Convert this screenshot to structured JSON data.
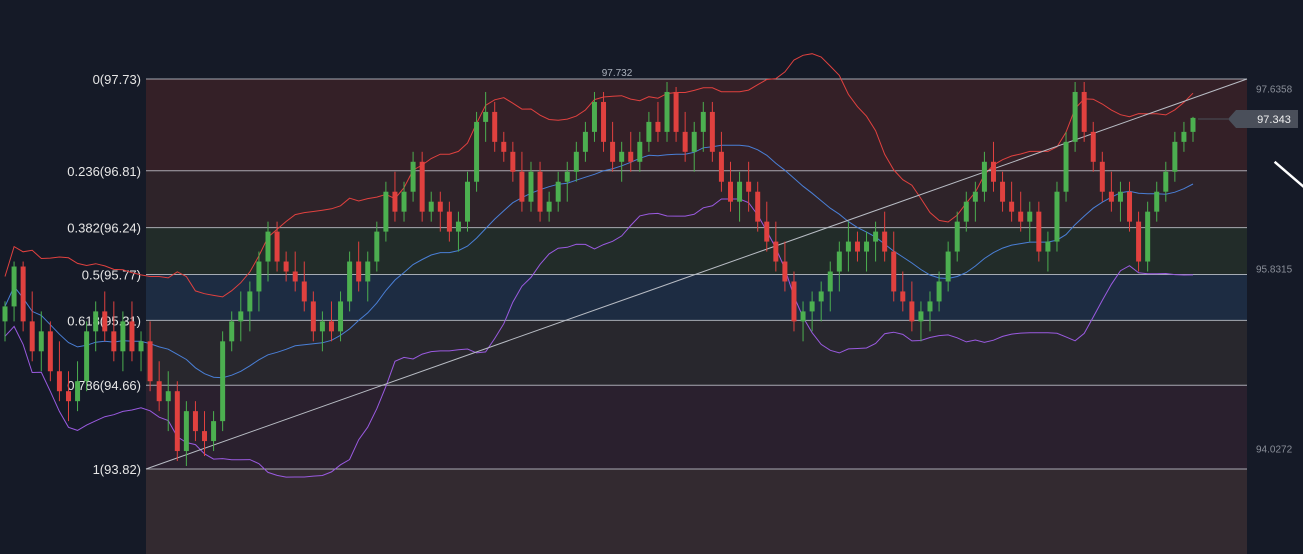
{
  "chart_data": {
    "type": "candlestick",
    "instrument_note": "",
    "y_range": [
      93.82,
      97.73
    ],
    "colors": {
      "background": "#151a27",
      "up_candle": "#4caf50",
      "down_candle": "#e0413f",
      "middle_band": "#4a7fd6",
      "upper_band": "#e0413f",
      "lower_band": "#9a5ae0",
      "trend_line": "#b8bcc4",
      "fib_line": "#c8ccd4",
      "arrow": "#ffffff",
      "price_badge": "#4a4f5a"
    },
    "fib_levels": [
      {
        "ratio": "0",
        "price": 97.73,
        "label": "0(97.73)",
        "band_color": "#3a2228"
      },
      {
        "ratio": "0.236",
        "price": 96.81,
        "label": "0.236(96.81)",
        "band_color": "#33262a"
      },
      {
        "ratio": "0.382",
        "price": 96.24,
        "label": "0.382(96.24)",
        "band_color": "#24302a"
      },
      {
        "ratio": "0.5",
        "price": 95.77,
        "label": "0.5(95.77)",
        "band_color": "#1e3048"
      },
      {
        "ratio": "0.618",
        "price": 95.31,
        "label": "0.618(95.31)",
        "band_color": "#2c2a2f"
      },
      {
        "ratio": "0.786",
        "price": 94.66,
        "label": "0.786(94.66)",
        "band_color": "#2e2230"
      },
      {
        "ratio": "1",
        "price": 93.82,
        "label": "1(93.82)",
        "band_color": "#312a30"
      }
    ],
    "top_label": "97.732",
    "right_axis_labels": [
      "97.6358",
      "95.8315",
      "94.0272"
    ],
    "current_price": "97.343",
    "candles": [
      [
        95.3,
        95.5,
        95.1,
        95.45
      ],
      [
        95.45,
        95.9,
        95.3,
        95.85
      ],
      [
        95.85,
        95.9,
        95.2,
        95.3
      ],
      [
        95.3,
        95.6,
        94.9,
        95.0
      ],
      [
        95.0,
        95.4,
        94.8,
        95.2
      ],
      [
        95.2,
        95.3,
        94.7,
        94.8
      ],
      [
        94.8,
        95.1,
        94.5,
        94.6
      ],
      [
        94.6,
        94.8,
        94.3,
        94.5
      ],
      [
        94.5,
        94.9,
        94.4,
        94.7
      ],
      [
        94.7,
        95.3,
        94.6,
        95.2
      ],
      [
        95.2,
        95.5,
        95.0,
        95.4
      ],
      [
        95.4,
        95.6,
        95.1,
        95.2
      ],
      [
        95.2,
        95.5,
        94.9,
        95.0
      ],
      [
        95.0,
        95.4,
        94.8,
        95.3
      ],
      [
        95.3,
        95.5,
        94.9,
        95.0
      ],
      [
        95.0,
        95.2,
        94.8,
        95.1
      ],
      [
        95.1,
        95.3,
        94.6,
        94.7
      ],
      [
        94.7,
        94.9,
        94.4,
        94.5
      ],
      [
        94.5,
        94.8,
        94.2,
        94.6
      ],
      [
        94.6,
        94.7,
        93.9,
        94.0
      ],
      [
        94.0,
        94.5,
        93.85,
        94.4
      ],
      [
        94.4,
        94.5,
        94.1,
        94.2
      ],
      [
        94.2,
        94.4,
        93.95,
        94.1
      ],
      [
        94.1,
        94.4,
        94.0,
        94.3
      ],
      [
        94.3,
        95.2,
        94.2,
        95.1
      ],
      [
        95.1,
        95.4,
        95.0,
        95.3
      ],
      [
        95.3,
        95.6,
        95.1,
        95.4
      ],
      [
        95.4,
        95.7,
        95.2,
        95.6
      ],
      [
        95.6,
        96.0,
        95.4,
        95.9
      ],
      [
        95.9,
        96.3,
        95.7,
        96.2
      ],
      [
        96.2,
        96.3,
        95.8,
        95.9
      ],
      [
        95.9,
        96.0,
        95.7,
        95.8
      ],
      [
        95.8,
        96.0,
        95.6,
        95.7
      ],
      [
        95.7,
        95.9,
        95.4,
        95.5
      ],
      [
        95.5,
        95.6,
        95.1,
        95.2
      ],
      [
        95.2,
        95.4,
        95.0,
        95.3
      ],
      [
        95.3,
        95.5,
        95.1,
        95.2
      ],
      [
        95.2,
        95.6,
        95.1,
        95.5
      ],
      [
        95.5,
        96.0,
        95.4,
        95.9
      ],
      [
        95.9,
        96.1,
        95.6,
        95.7
      ],
      [
        95.7,
        96.0,
        95.5,
        95.9
      ],
      [
        95.9,
        96.3,
        95.8,
        96.2
      ],
      [
        96.2,
        96.7,
        96.1,
        96.6
      ],
      [
        96.6,
        96.8,
        96.3,
        96.4
      ],
      [
        96.4,
        96.7,
        96.3,
        96.6
      ],
      [
        96.6,
        97.0,
        96.5,
        96.9
      ],
      [
        96.9,
        97.0,
        96.3,
        96.4
      ],
      [
        96.4,
        96.6,
        96.3,
        96.5
      ],
      [
        96.5,
        96.6,
        96.2,
        96.4
      ],
      [
        96.4,
        96.5,
        96.1,
        96.2
      ],
      [
        96.2,
        96.4,
        96.0,
        96.3
      ],
      [
        96.3,
        96.8,
        96.2,
        96.7
      ],
      [
        96.7,
        97.4,
        96.6,
        97.3
      ],
      [
        97.3,
        97.6,
        97.1,
        97.4
      ],
      [
        97.4,
        97.5,
        97.0,
        97.1
      ],
      [
        97.1,
        97.2,
        96.9,
        97.0
      ],
      [
        97.0,
        97.1,
        96.7,
        96.8
      ],
      [
        96.8,
        97.0,
        96.4,
        96.5
      ],
      [
        96.5,
        96.9,
        96.4,
        96.8
      ],
      [
        96.8,
        96.9,
        96.3,
        96.4
      ],
      [
        96.4,
        96.6,
        96.3,
        96.5
      ],
      [
        96.5,
        96.8,
        96.4,
        96.7
      ],
      [
        96.7,
        96.9,
        96.5,
        96.8
      ],
      [
        96.8,
        97.1,
        96.7,
        97.0
      ],
      [
        97.0,
        97.3,
        96.9,
        97.2
      ],
      [
        97.2,
        97.6,
        97.1,
        97.5
      ],
      [
        97.5,
        97.6,
        97.0,
        97.1
      ],
      [
        97.1,
        97.3,
        96.8,
        96.9
      ],
      [
        96.9,
        97.1,
        96.7,
        97.0
      ],
      [
        97.0,
        97.2,
        96.8,
        96.9
      ],
      [
        96.9,
        97.2,
        96.8,
        97.1
      ],
      [
        97.1,
        97.4,
        97.0,
        97.3
      ],
      [
        97.3,
        97.5,
        97.1,
        97.2
      ],
      [
        97.2,
        97.7,
        97.1,
        97.6
      ],
      [
        97.6,
        97.65,
        97.1,
        97.2
      ],
      [
        97.2,
        97.4,
        96.9,
        97.0
      ],
      [
        97.0,
        97.3,
        96.8,
        97.2
      ],
      [
        97.2,
        97.5,
        97.0,
        97.4
      ],
      [
        97.4,
        97.5,
        96.9,
        97.0
      ],
      [
        97.0,
        97.2,
        96.6,
        96.7
      ],
      [
        96.7,
        96.9,
        96.4,
        96.5
      ],
      [
        96.5,
        96.8,
        96.3,
        96.7
      ],
      [
        96.7,
        96.9,
        96.4,
        96.6
      ],
      [
        96.6,
        96.7,
        96.2,
        96.3
      ],
      [
        96.3,
        96.5,
        96.0,
        96.1
      ],
      [
        96.1,
        96.3,
        95.8,
        95.9
      ],
      [
        95.9,
        96.1,
        95.6,
        95.7
      ],
      [
        95.7,
        95.8,
        95.2,
        95.3
      ],
      [
        95.3,
        95.5,
        95.1,
        95.4
      ],
      [
        95.4,
        95.6,
        95.2,
        95.5
      ],
      [
        95.5,
        95.7,
        95.3,
        95.6
      ],
      [
        95.6,
        95.9,
        95.4,
        95.8
      ],
      [
        95.8,
        96.1,
        95.6,
        96.0
      ],
      [
        96.0,
        96.3,
        95.8,
        96.1
      ],
      [
        96.1,
        96.2,
        95.9,
        96.0
      ],
      [
        96.0,
        96.2,
        95.8,
        96.1
      ],
      [
        96.1,
        96.3,
        95.9,
        96.2
      ],
      [
        96.2,
        96.4,
        95.9,
        96.0
      ],
      [
        96.0,
        96.2,
        95.5,
        95.6
      ],
      [
        95.6,
        95.8,
        95.4,
        95.5
      ],
      [
        95.5,
        95.7,
        95.2,
        95.3
      ],
      [
        95.3,
        95.5,
        95.1,
        95.4
      ],
      [
        95.4,
        95.6,
        95.2,
        95.5
      ],
      [
        95.5,
        95.8,
        95.4,
        95.7
      ],
      [
        95.7,
        96.1,
        95.6,
        96.0
      ],
      [
        96.0,
        96.4,
        95.9,
        96.3
      ],
      [
        96.3,
        96.6,
        96.2,
        96.5
      ],
      [
        96.5,
        96.7,
        96.3,
        96.6
      ],
      [
        96.6,
        97.0,
        96.5,
        96.9
      ],
      [
        96.9,
        97.1,
        96.6,
        96.7
      ],
      [
        96.7,
        96.8,
        96.4,
        96.5
      ],
      [
        96.5,
        96.7,
        96.3,
        96.4
      ],
      [
        96.4,
        96.6,
        96.2,
        96.3
      ],
      [
        96.3,
        96.5,
        96.1,
        96.4
      ],
      [
        96.4,
        96.5,
        95.9,
        96.0
      ],
      [
        96.0,
        96.2,
        95.8,
        96.1
      ],
      [
        96.1,
        96.7,
        96.0,
        96.6
      ],
      [
        96.6,
        97.2,
        96.5,
        97.1
      ],
      [
        97.1,
        97.7,
        97.0,
        97.6
      ],
      [
        97.6,
        97.7,
        97.1,
        97.2
      ],
      [
        97.2,
        97.3,
        96.8,
        96.9
      ],
      [
        96.9,
        97.0,
        96.5,
        96.6
      ],
      [
        96.6,
        96.8,
        96.4,
        96.5
      ],
      [
        96.5,
        96.7,
        96.3,
        96.6
      ],
      [
        96.6,
        96.7,
        96.2,
        96.3
      ],
      [
        96.3,
        96.4,
        95.8,
        95.9
      ],
      [
        95.9,
        96.5,
        95.8,
        96.4
      ],
      [
        96.4,
        96.7,
        96.3,
        96.6
      ],
      [
        96.6,
        96.9,
        96.5,
        96.8
      ],
      [
        96.8,
        97.2,
        96.7,
        97.1
      ],
      [
        97.1,
        97.3,
        97.0,
        97.2
      ],
      [
        97.2,
        97.35,
        97.1,
        97.34
      ]
    ]
  }
}
